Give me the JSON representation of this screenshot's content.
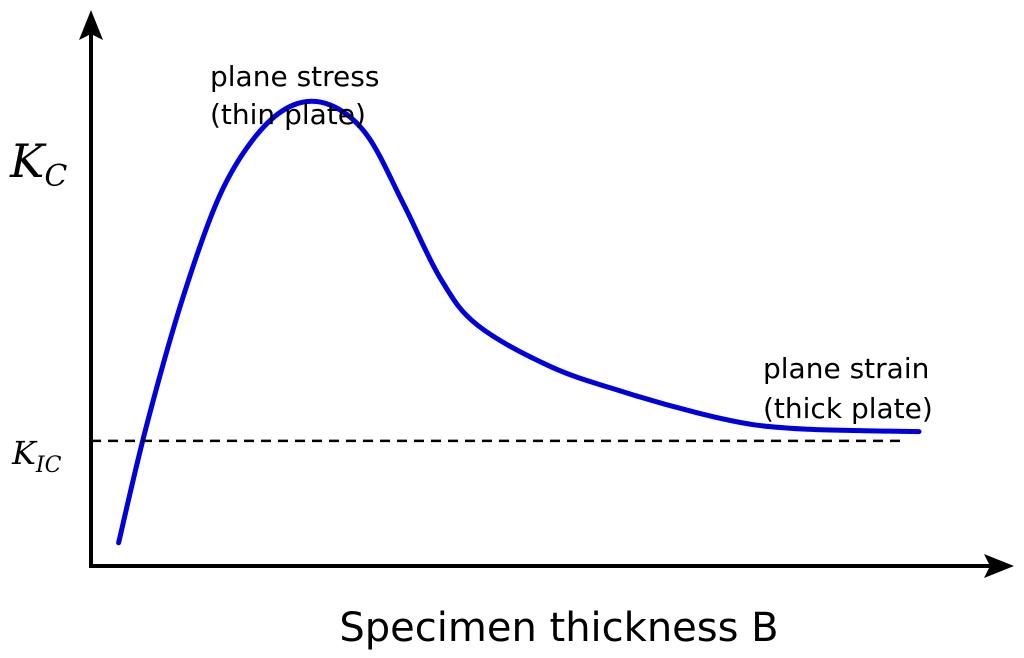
{
  "chart_data": {
    "type": "line",
    "title": "",
    "xlabel": "Specimen thickness B",
    "ylabel": "",
    "y_tick_labels": [
      {
        "symbol": "K",
        "subscript": "C"
      },
      {
        "symbol": "K",
        "subscript": "IC"
      }
    ],
    "annotations": [
      {
        "lines": [
          "plane stress",
          "(thin plate)"
        ]
      },
      {
        "lines": [
          "plane strain",
          "(thick plate)"
        ]
      }
    ],
    "series": [
      {
        "style": "solid",
        "color": "#0000dd",
        "points": [
          [
            0.03,
            0.05
          ],
          [
            0.06,
            0.3
          ],
          [
            0.1,
            0.58
          ],
          [
            0.14,
            0.8
          ],
          [
            0.18,
            0.93
          ],
          [
            0.22,
            0.995
          ],
          [
            0.26,
            0.995
          ],
          [
            0.3,
            0.93
          ],
          [
            0.34,
            0.78
          ],
          [
            0.38,
            0.62
          ],
          [
            0.42,
            0.52
          ],
          [
            0.5,
            0.43
          ],
          [
            0.58,
            0.375
          ],
          [
            0.66,
            0.33
          ],
          [
            0.72,
            0.305
          ],
          [
            0.78,
            0.295
          ],
          [
            0.84,
            0.292
          ],
          [
            0.9,
            0.29
          ]
        ]
      },
      {
        "style": "dashed",
        "color": "#000000",
        "points": [
          [
            0.0,
            0.27
          ],
          [
            0.88,
            0.27
          ]
        ]
      }
    ],
    "xlim": [
      0,
      1
    ],
    "ylim": [
      0,
      1.2
    ],
    "axis_ticks": false,
    "grid": false
  }
}
